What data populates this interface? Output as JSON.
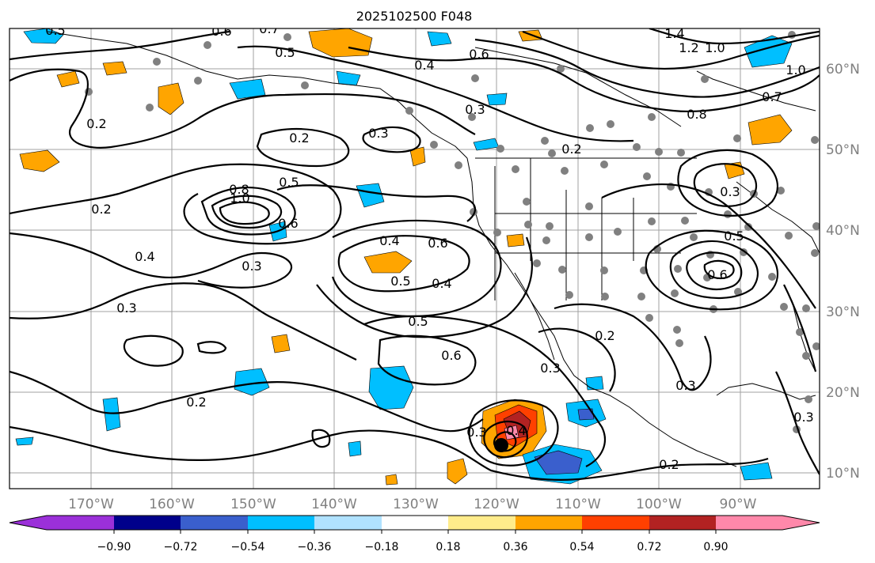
{
  "title": "2025102500 F048",
  "lon_ticks": [
    "170°W",
    "160°W",
    "150°W",
    "140°W",
    "130°W",
    "120°W",
    "110°W",
    "100°W",
    "90°W"
  ],
  "lat_ticks": [
    "60°N",
    "50°N",
    "40°N",
    "30°N",
    "20°N",
    "10°N"
  ],
  "colorbar": {
    "ticks": [
      "−0.90",
      "−0.72",
      "−0.54",
      "−0.36",
      "−0.18",
      "0.18",
      "0.36",
      "0.54",
      "0.72",
      "0.90"
    ],
    "colors": [
      "#9b30d9",
      "#00008b",
      "#3a5fcd",
      "#00bfff",
      "#b0e2ff",
      "#ffffff",
      "#ffec8b",
      "#ffa500",
      "#ff4000",
      "#b22222",
      "#ff88aa"
    ]
  },
  "contour_labels": [
    {
      "text": "0.5"
    },
    {
      "text": "0.7"
    },
    {
      "text": "0.6"
    },
    {
      "text": "0.5"
    },
    {
      "text": "0.4"
    },
    {
      "text": "0.6"
    },
    {
      "text": "1.4"
    },
    {
      "text": "1.2"
    },
    {
      "text": "1.0"
    },
    {
      "text": "1.0"
    },
    {
      "text": "0.7"
    },
    {
      "text": "0.8"
    },
    {
      "text": "0.3"
    },
    {
      "text": "0.2"
    },
    {
      "text": "0.2"
    },
    {
      "text": "0.3"
    },
    {
      "text": "0.2"
    },
    {
      "text": "0.8"
    },
    {
      "text": "1.0"
    },
    {
      "text": "0.5"
    },
    {
      "text": "0.6"
    },
    {
      "text": "0.2"
    },
    {
      "text": "0.4"
    },
    {
      "text": "0.3"
    },
    {
      "text": "0.4"
    },
    {
      "text": "0.6"
    },
    {
      "text": "0.5"
    },
    {
      "text": "0.4"
    },
    {
      "text": "0.3"
    },
    {
      "text": "0.5"
    },
    {
      "text": "0.6"
    },
    {
      "text": "0.2"
    },
    {
      "text": "0.3"
    },
    {
      "text": "0.3"
    },
    {
      "text": "0.2"
    },
    {
      "text": "0.3"
    },
    {
      "text": "0.4"
    },
    {
      "text": "0.2"
    },
    {
      "text": "0.3"
    },
    {
      "text": "0.5"
    },
    {
      "text": "0.6"
    },
    {
      "text": "0.3"
    }
  ]
}
